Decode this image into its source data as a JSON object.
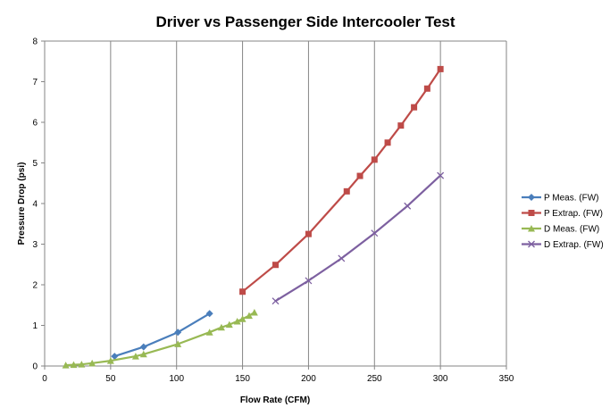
{
  "chart_data": {
    "type": "line",
    "title": "Driver vs Passenger Side Intercooler Test",
    "xlabel": "Flow Rate (CFM)",
    "ylabel": "Pressure Drop (psi)",
    "xlim": [
      0,
      350
    ],
    "ylim": [
      0,
      8
    ],
    "x_ticks": [
      0,
      50,
      100,
      150,
      200,
      250,
      300,
      350
    ],
    "y_ticks": [
      0,
      1,
      2,
      3,
      4,
      5,
      6,
      7,
      8
    ],
    "grid": "vertical-major",
    "legend_position": "right",
    "series": [
      {
        "name": "P Meas. (FW)",
        "color": "#4a7ebb",
        "marker": "diamond",
        "points": [
          [
            53,
            0.24
          ],
          [
            75,
            0.47
          ],
          [
            101,
            0.83
          ],
          [
            125,
            1.29
          ]
        ]
      },
      {
        "name": "P Extrap. (FW)",
        "color": "#be4b48",
        "marker": "square",
        "points": [
          [
            150,
            1.83
          ],
          [
            175,
            2.49
          ],
          [
            200,
            3.25
          ],
          [
            229,
            4.3
          ],
          [
            239,
            4.68
          ],
          [
            250,
            5.08
          ],
          [
            260,
            5.5
          ],
          [
            270,
            5.92
          ],
          [
            280,
            6.37
          ],
          [
            290,
            6.83
          ],
          [
            300,
            7.31
          ]
        ]
      },
      {
        "name": "D Meas. (FW)",
        "color": "#98b954",
        "marker": "triangle",
        "points": [
          [
            16,
            0.02
          ],
          [
            22,
            0.03
          ],
          [
            28,
            0.04
          ],
          [
            36,
            0.07
          ],
          [
            50,
            0.13
          ],
          [
            69,
            0.24
          ],
          [
            75,
            0.29
          ],
          [
            101,
            0.54
          ],
          [
            125,
            0.83
          ],
          [
            134,
            0.95
          ],
          [
            140,
            1.02
          ],
          [
            146,
            1.1
          ],
          [
            150,
            1.16
          ],
          [
            155,
            1.24
          ],
          [
            159,
            1.32
          ]
        ]
      },
      {
        "name": "D Extrap. (FW)",
        "color": "#7d60a0",
        "marker": "x",
        "points": [
          [
            175,
            1.6
          ],
          [
            200,
            2.1
          ],
          [
            225,
            2.65
          ],
          [
            250,
            3.27
          ],
          [
            275,
            3.94
          ],
          [
            300,
            4.69
          ]
        ]
      }
    ]
  }
}
